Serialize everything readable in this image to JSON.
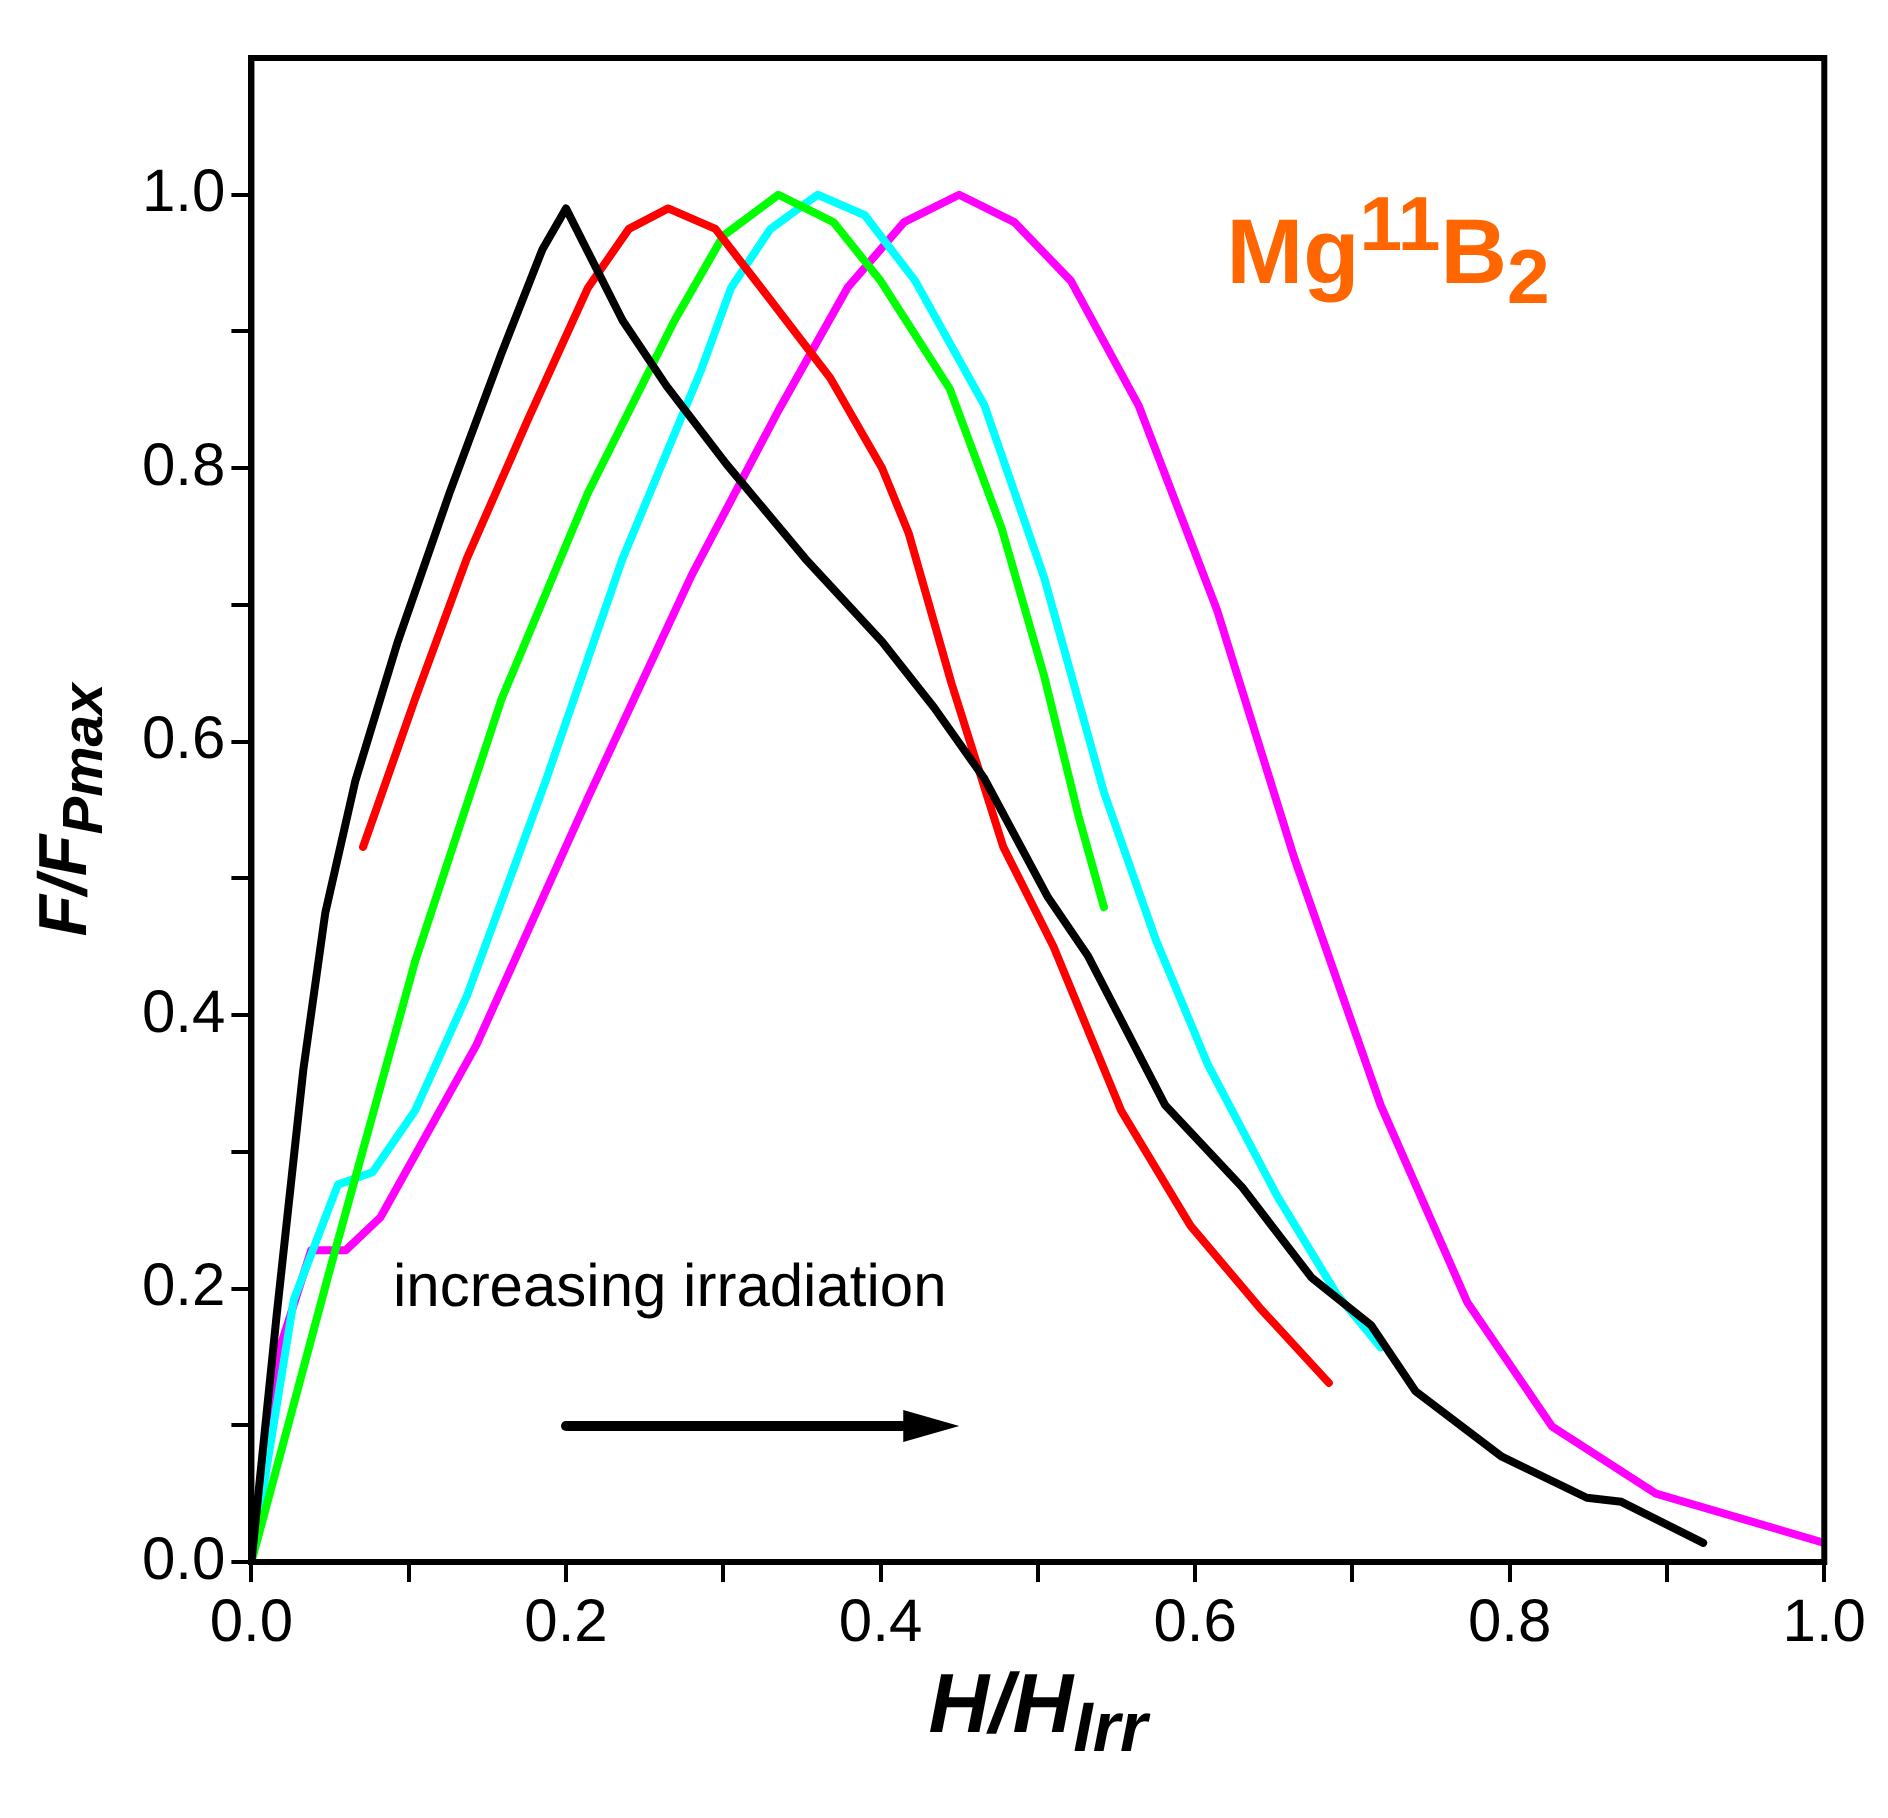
{
  "chart_data": {
    "type": "line",
    "xlabel": "H/H$_{Irr}$",
    "ylabel": "F/F$_{Pmax}$",
    "annotations": [
      "Mg$^{11}$B$_{2}$",
      "increasing irradiation"
    ],
    "xlim": [
      0,
      1
    ],
    "ylim": [
      0,
      1.1
    ],
    "xticks": [
      {
        "value": 0,
        "label": "0.0"
      },
      {
        "value": 0.1,
        "label": null
      },
      0.2,
      {
        "value": 0.3,
        "label": null
      },
      0.4,
      {
        "value": 0.5,
        "label": null
      },
      0.6,
      {
        "value": 0.7,
        "label": null
      },
      0.8,
      {
        "value": 0.9,
        "label": null
      },
      {
        "value": 1,
        "label": "1.0"
      }
    ],
    "yticks": [
      {
        "value": 0,
        "label": "0.0"
      },
      {
        "value": 0.1,
        "label": null
      },
      0.2,
      {
        "value": 0.3,
        "label": null
      },
      0.4,
      {
        "value": 0.5,
        "label": null
      },
      0.6,
      {
        "value": 0.7,
        "label": null
      },
      0.8,
      {
        "value": 0.9,
        "label": null
      },
      {
        "value": 1,
        "label": "1.0"
      }
    ],
    "grid": false,
    "legend": false,
    "marker": "none",
    "line_style": "solid",
    "series": [
      {
        "color": "#000000",
        "x": [
          0,
          0.016,
          0.033,
          0.047,
          0.066,
          0.093,
          0.126,
          0.159,
          0.185,
          0.2,
          0.236,
          0.264,
          0.302,
          0.352,
          0.401,
          0.434,
          0.466,
          0.506,
          0.532,
          0.581,
          0.63,
          0.674,
          0.712,
          0.74,
          0.795,
          0.849,
          0.871,
          0.923
        ],
        "values": [
          0,
          0.18,
          0.36,
          0.475,
          0.571,
          0.673,
          0.782,
          0.884,
          0.96,
          0.99,
          0.908,
          0.86,
          0.803,
          0.734,
          0.673,
          0.625,
          0.573,
          0.487,
          0.443,
          0.334,
          0.274,
          0.208,
          0.173,
          0.125,
          0.077,
          0.047,
          0.044,
          0.014
        ]
      },
      {
        "color": "#ff0000",
        "x": [
          0.071,
          0.104,
          0.137,
          0.176,
          0.214,
          0.24,
          0.265,
          0.295,
          0.324,
          0.368,
          0.401,
          0.418,
          0.445,
          0.478,
          0.51,
          0.553,
          0.597,
          0.641,
          0.685
        ],
        "values": [
          0.523,
          0.631,
          0.734,
          0.836,
          0.932,
          0.975,
          0.99,
          0.975,
          0.932,
          0.866,
          0.8,
          0.752,
          0.643,
          0.523,
          0.45,
          0.33,
          0.246,
          0.186,
          0.131
        ]
      },
      {
        "color": "#00ff00",
        "x": [
          0,
          0.049,
          0.104,
          0.159,
          0.214,
          0.269,
          0.3,
          0.335,
          0.37,
          0.4,
          0.444,
          0.477,
          0.504,
          0.526,
          0.542
        ],
        "values": [
          0,
          0.21,
          0.439,
          0.631,
          0.782,
          0.908,
          0.97,
          1,
          0.98,
          0.937,
          0.858,
          0.756,
          0.648,
          0.545,
          0.479
        ]
      },
      {
        "color": "#00ffff",
        "x": [
          0,
          0.027,
          0.055,
          0.077,
          0.104,
          0.137,
          0.187,
          0.236,
          0.286,
          0.305,
          0.33,
          0.36,
          0.39,
          0.422,
          0.466,
          0.504,
          0.542,
          0.575,
          0.608,
          0.652,
          0.69,
          0.718
        ],
        "values": [
          0,
          0.192,
          0.276,
          0.285,
          0.33,
          0.414,
          0.571,
          0.734,
          0.872,
          0.932,
          0.975,
          1,
          0.985,
          0.937,
          0.846,
          0.72,
          0.563,
          0.455,
          0.364,
          0.268,
          0.196,
          0.157
        ]
      },
      {
        "color": "#ff00ff",
        "x": [
          0,
          0.016,
          0.038,
          0.06,
          0.082,
          0.143,
          0.214,
          0.28,
          0.335,
          0.379,
          0.415,
          0.45,
          0.485,
          0.521,
          0.564,
          0.614,
          0.663,
          0.718,
          0.773,
          0.827,
          0.893,
          1
        ],
        "values": [
          0,
          0.149,
          0.228,
          0.228,
          0.252,
          0.378,
          0.559,
          0.722,
          0.842,
          0.932,
          0.98,
          1,
          0.98,
          0.937,
          0.846,
          0.696,
          0.515,
          0.334,
          0.19,
          0.099,
          0.05,
          0.014
        ]
      }
    ]
  }
}
